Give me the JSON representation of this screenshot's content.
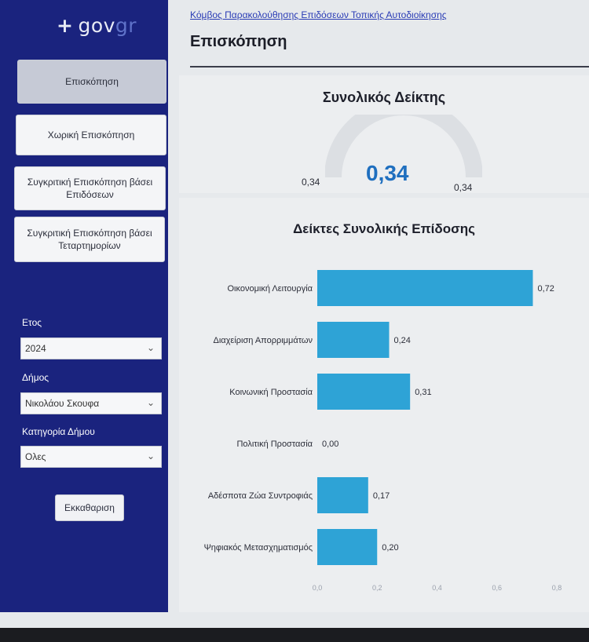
{
  "logo": {
    "plus": "+",
    "gov": "gov",
    "gr": "gr"
  },
  "sidebar": {
    "nav": [
      {
        "label": "Επισκόπηση",
        "active": true
      },
      {
        "label": "Χωρική Επισκόπηση",
        "active": false
      },
      {
        "label": "Συγκριτική Επισκόπηση βάσει Επιδόσεων",
        "active": false
      },
      {
        "label": "Συγκριτική Επισκόπηση βάσει Τεταρτημορίων",
        "active": false
      }
    ],
    "filters": {
      "year": {
        "label": "Ετος",
        "value": "2024"
      },
      "municipality": {
        "label": "Δήμος",
        "value": "Νικολάου Σκουφα"
      },
      "category": {
        "label": "Κατηγορία Δήμου",
        "value": "Ολες"
      }
    },
    "clear_label": "Εκκαθαριση"
  },
  "header": {
    "breadcrumb": "Κόμβος Παρακολούθησης Επιδόσεων Τοπικής Αυτοδιοίκησης",
    "title": "Επισκόπηση"
  },
  "kpi": {
    "title": "Συνολικός Δείκτης",
    "value": "0,34",
    "min_label": "0,34",
    "max_label": "0,34"
  },
  "colors": {
    "sidebar": "#1a237e",
    "bar": "#2ea3d6",
    "kpi_value": "#1f6fbf"
  },
  "chart_data": {
    "type": "bar",
    "orientation": "horizontal",
    "title": "Δείκτες Συνολικής Επίδοσης",
    "categories": [
      "Οικονομική Λειτουργία",
      "Διαχείριση Απορριμμάτων",
      "Κοινωνική Προστασία",
      "Πολιτική Προστασία",
      "Αδέσποτα Ζώα Συντροφιάς",
      "Ψηφιακός Μετασχηματισμός"
    ],
    "values": [
      0.72,
      0.24,
      0.31,
      0.0,
      0.17,
      0.2
    ],
    "value_labels": [
      "0,72",
      "0,24",
      "0,31",
      "0,00",
      "0,17",
      "0,20"
    ],
    "xlim": [
      0,
      0.8
    ],
    "xticks": [
      "0,0",
      "0,2",
      "0,4",
      "0,6",
      "0,8"
    ],
    "grid": false,
    "legend": "none"
  }
}
